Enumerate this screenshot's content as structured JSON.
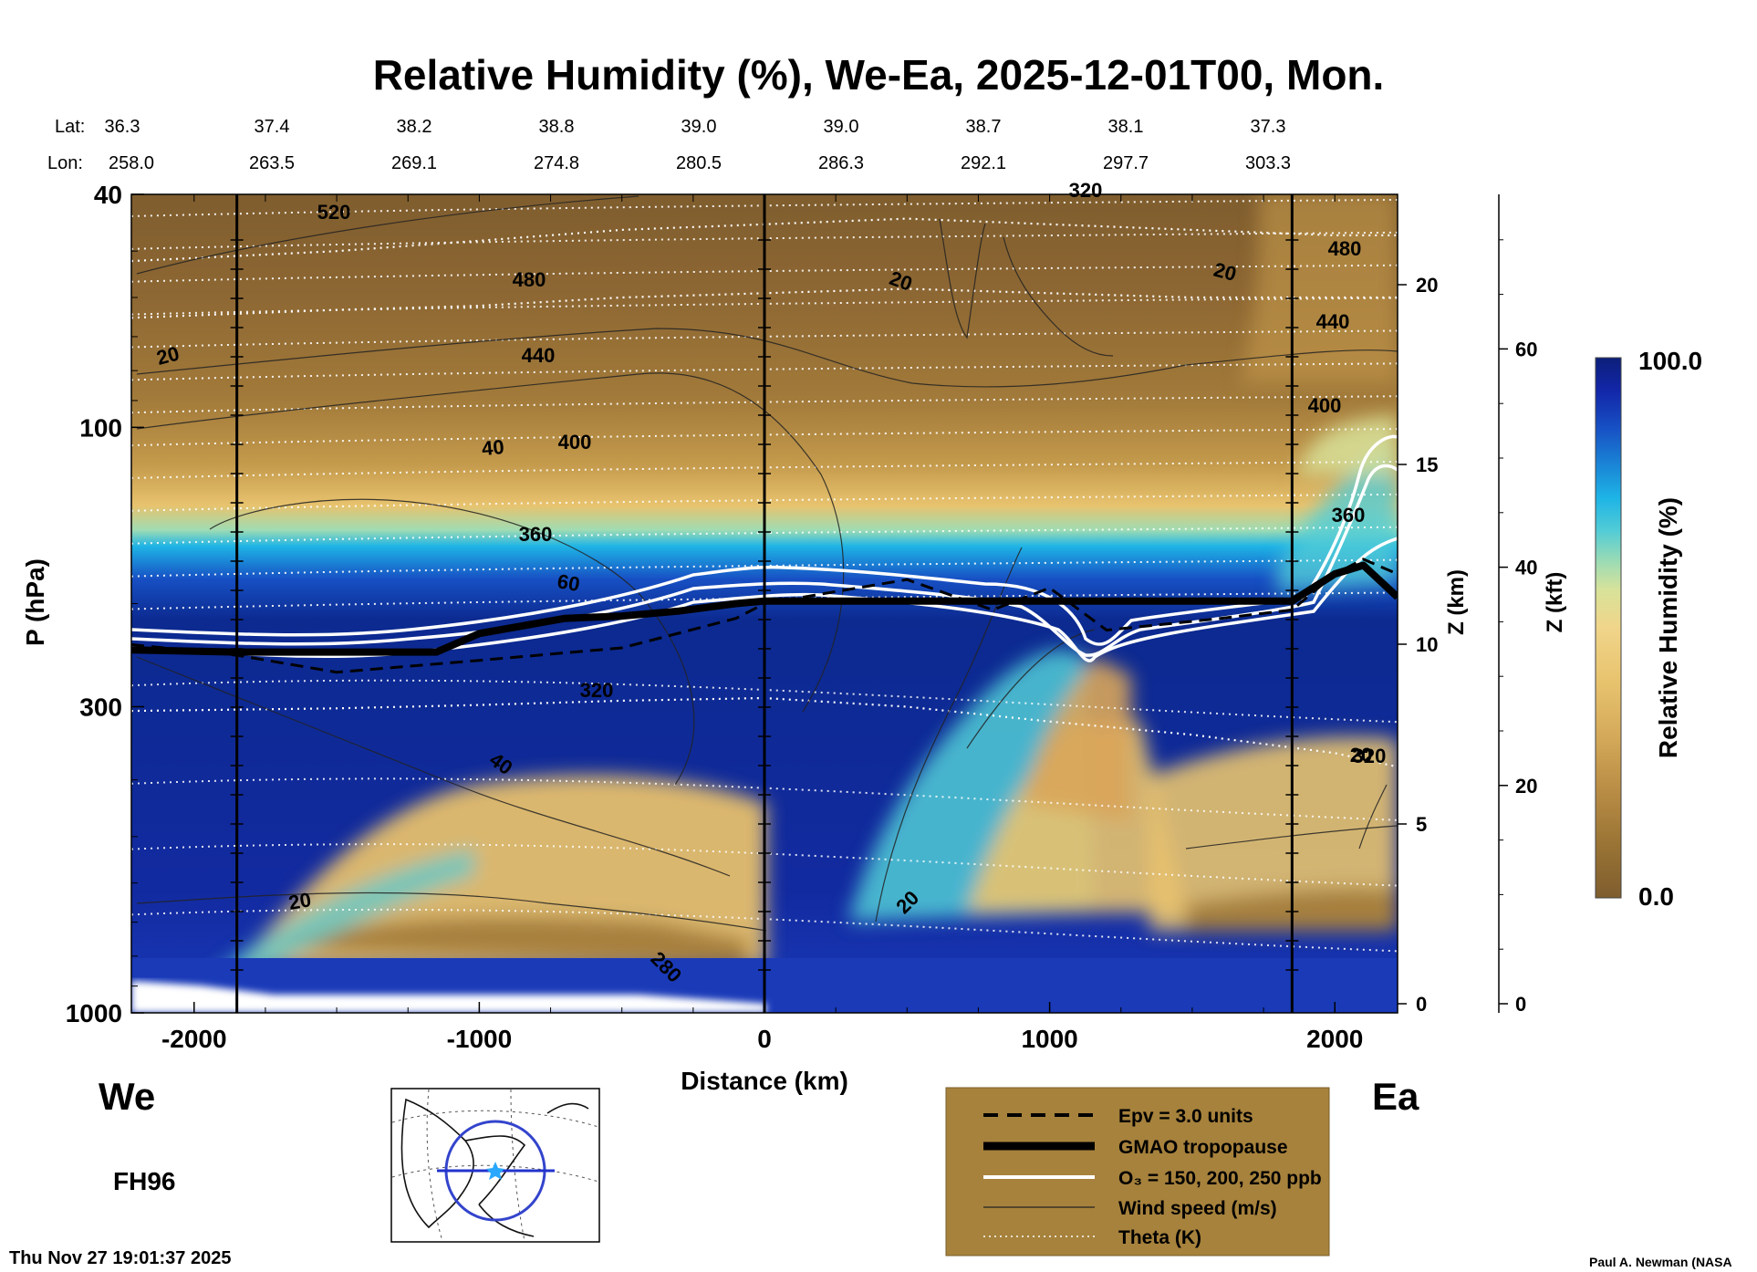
{
  "chart_data": {
    "type": "heatmap",
    "title": "Relative Humidity (%), We-Ea, 2025-12-01T00, Mon.",
    "xlabel": "Distance (km)",
    "ylabel": "P (hPa)",
    "ylabel_right_km": "Z (km)",
    "ylabel_right_kft": "Z (kft)",
    "xlim": [
      -2220,
      2220
    ],
    "ylim": [
      1000,
      40
    ],
    "y_scale": "log",
    "x_ticks": [
      -2000,
      -1000,
      0,
      1000,
      2000
    ],
    "x_tick_labels": [
      "-2000",
      "-1000",
      "0",
      "1000",
      "2000"
    ],
    "y_ticks": [
      40,
      100,
      300,
      1000
    ],
    "y_tick_labels": [
      "40",
      "100",
      "300",
      "1000"
    ],
    "z_km_ticks": [
      0,
      5,
      10,
      15,
      20
    ],
    "z_kft_ticks": [
      0,
      20,
      40,
      60
    ],
    "vertical_lines_km": [
      -1850,
      0,
      1850
    ],
    "endpoint_left": "We",
    "endpoint_right": "Ea",
    "forecast_hour": "FH96",
    "timestamp": "Thu Nov 27 19:01:37 2025",
    "credit": "Paul A. Newman (NASA",
    "lat_label": "Lat:",
    "lon_label": "Lon:",
    "lats": [
      "36.3",
      "37.4",
      "38.2",
      "38.8",
      "39.0",
      "39.0",
      "38.7",
      "38.1",
      "37.3"
    ],
    "lons": [
      "258.0",
      "263.5",
      "269.1",
      "274.8",
      "280.5",
      "286.3",
      "292.1",
      "297.7",
      "303.3"
    ],
    "colorbar": {
      "label": "Relative Humidity (%)",
      "min_label": "0.0",
      "max_label": "100.0",
      "colors": [
        "#7f5d2e",
        "#9a7435",
        "#b98d45",
        "#d4aa5a",
        "#e8c36e",
        "#f0d58a",
        "#d8e29a",
        "#9fdcb3",
        "#52ccd6",
        "#1eb4e6",
        "#1a86d6",
        "#1750c4",
        "#1226a8",
        "#0c1f7a"
      ]
    },
    "theta_labels": [
      "520",
      "480",
      "440",
      "400",
      "360",
      "320",
      "280",
      "320",
      "480",
      "440",
      "400",
      "360",
      "320"
    ],
    "wind_labels": [
      "20",
      "40",
      "60",
      "40",
      "20",
      "20",
      "20",
      "20",
      "20"
    ],
    "legend": {
      "items": [
        "Epv = 3.0 units",
        "GMAO tropopause",
        "O₃ = 150, 200, 250 ppb",
        "Wind speed (m/s)",
        "Theta (K)"
      ]
    },
    "series": [
      {
        "name": "GMAO tropopause",
        "x": [
          -2220,
          -1850,
          -1500,
          -1150,
          -1000,
          -700,
          -500,
          -300,
          -100,
          0,
          300,
          600,
          900,
          1100,
          1300,
          1600,
          1850,
          2000,
          2100,
          2220
        ],
        "y": [
          240,
          242,
          242,
          242,
          225,
          212,
          210,
          206,
          200,
          198,
          198,
          198,
          198,
          198,
          198,
          198,
          198,
          178,
          172,
          195
        ]
      },
      {
        "name": "Epv = 3.0 units",
        "x": [
          -2220,
          -1850,
          -1500,
          -1000,
          -500,
          -100,
          0,
          500,
          800,
          1000,
          1200,
          1600,
          1850,
          2000,
          2100,
          2220
        ],
        "y": [
          235,
          245,
          262,
          250,
          238,
          212,
          200,
          182,
          205,
          188,
          222,
          212,
          205,
          178,
          168,
          178
        ]
      },
      {
        "name": "Theta (K)",
        "x": [
          -2220,
          -1500,
          -1000,
          -500,
          0,
          500,
          1000,
          1500,
          2000,
          2220
        ],
        "y": [
          305,
          302,
          298,
          293,
          290,
          300,
          318,
          335,
          360,
          380
        ]
      },
      {
        "name": "Theta (K)",
        "x": [
          -2220,
          -1500,
          -1000,
          -500,
          0,
          500,
          1000,
          1500,
          2000,
          2220
        ],
        "y": [
          52,
          50,
          48,
          46,
          45,
          44,
          45,
          46,
          47,
          47
        ]
      },
      {
        "name": "Theta (K)",
        "x": [
          -2220,
          -1500,
          -1000,
          -500,
          0,
          500,
          1000,
          1500,
          2000,
          2220
        ],
        "y": [
          65,
          63,
          62,
          60,
          59,
          58,
          59,
          60,
          60,
          60
        ]
      }
    ]
  }
}
